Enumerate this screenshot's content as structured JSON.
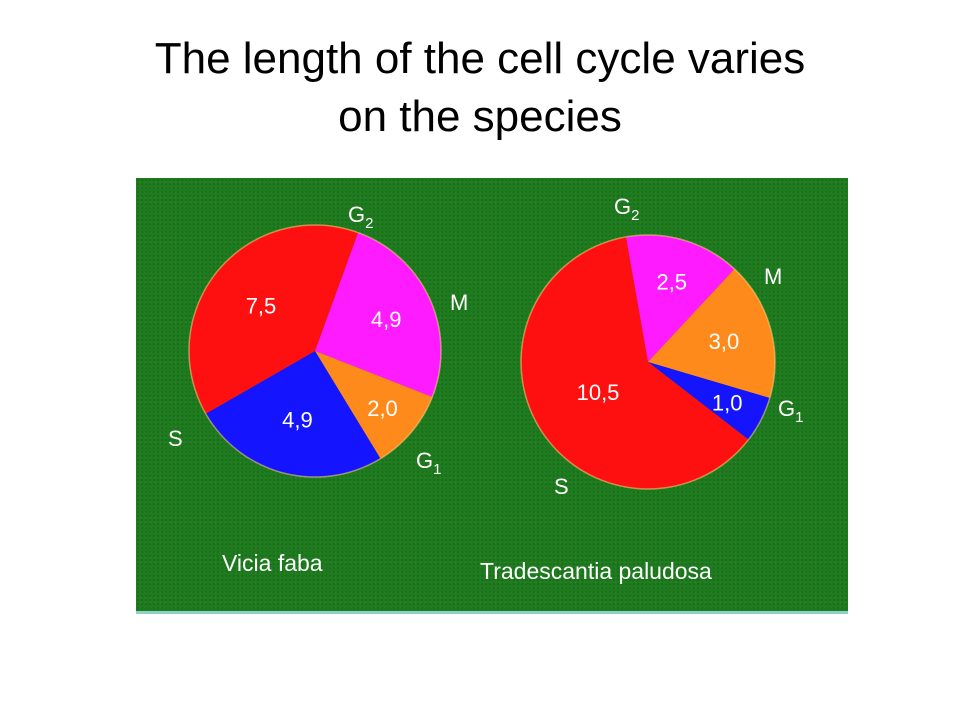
{
  "title": {
    "line1": "The length of the cell cycle varies",
    "line2": "on the species"
  },
  "chart_data": [
    {
      "type": "pie",
      "species": "Vicia faba",
      "slices": [
        {
          "phase": "G",
          "sub": "2",
          "value": 4.9,
          "label": "4,9",
          "color": "#ff1bff"
        },
        {
          "phase": "M",
          "sub": "",
          "value": 2.0,
          "label": "2,0",
          "color": "#ff8a1c"
        },
        {
          "phase": "G",
          "sub": "1",
          "value": 4.9,
          "label": "4,9",
          "color": "#1414ff"
        },
        {
          "phase": "S",
          "sub": "",
          "value": 7.5,
          "label": "7,5",
          "color": "#ff1010"
        }
      ]
    },
    {
      "type": "pie",
      "species": "Tradescantia paludosa",
      "slices": [
        {
          "phase": "G",
          "sub": "2",
          "value": 2.5,
          "label": "2,5",
          "color": "#ff1bff"
        },
        {
          "phase": "M",
          "sub": "",
          "value": 3.0,
          "label": "3,0",
          "color": "#ff8a1c"
        },
        {
          "phase": "G",
          "sub": "1",
          "value": 1.0,
          "label": "1,0",
          "color": "#1414ff"
        },
        {
          "phase": "S",
          "sub": "",
          "value": 10.5,
          "label": "10,5",
          "color": "#ff1010"
        }
      ]
    }
  ]
}
